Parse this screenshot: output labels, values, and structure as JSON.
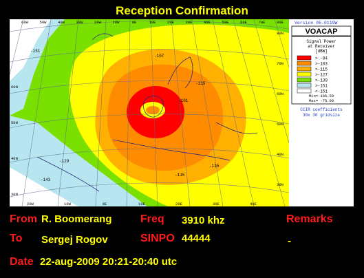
{
  "title": "Reception Confirmation",
  "map": {
    "version": "Version 05.0119W",
    "brand": "VOACAP",
    "legend_title": [
      "Signal Power",
      "at Receiver",
      "[dBW]"
    ],
    "legend_items": [
      {
        "label": "> -84",
        "color": "#ff0000"
      },
      {
        "label": ">-103",
        "color": "#ff8c00"
      },
      {
        "label": ">-115",
        "color": "#ffb000"
      },
      {
        "label": ">-127",
        "color": "#ffff00"
      },
      {
        "label": ">-139",
        "color": "#7ae000"
      },
      {
        "label": ">-151",
        "color": "#b8e6f0"
      },
      {
        "label": "<-151",
        "color": "#ffffff"
      }
    ],
    "min_text": "Min=-185.50",
    "max_text": "Max= -75.00",
    "footer_1": "CCIR coefficients",
    "footer_2": "30x 30 gridsize",
    "top_lons": [
      "60W",
      "50W",
      "40W",
      "30W",
      "20W",
      "10W",
      "0E",
      "10E",
      "20E",
      "30E",
      "40E",
      "50E",
      "60E",
      "70E",
      "80E"
    ],
    "bottom_lons": [
      "20W",
      "10W",
      "0E",
      "10E",
      "20E",
      "30E",
      "40E"
    ],
    "right_lats": [
      "80N",
      "70N",
      "60N",
      "50N",
      "40N",
      "30N"
    ],
    "left_lats": [
      "60N",
      "50N",
      "40N",
      "30N"
    ],
    "contour_labels": [
      "-107",
      "-115",
      "-101",
      "-115",
      "-115",
      "-129",
      "-143",
      "-151"
    ]
  },
  "info": {
    "from_label": "From",
    "from_value": "R. Boomerang",
    "to_label": "To",
    "to_value": "Sergej Rogov",
    "freq_label": "Freq",
    "freq_value": "3910 khz",
    "sinpo_label": "SINPO",
    "sinpo_value": "44444",
    "remarks_label": "Remarks",
    "remarks_value": "-",
    "date_label": "Date",
    "date_value": "22-aug-2009 20:21-20:40 utc"
  }
}
